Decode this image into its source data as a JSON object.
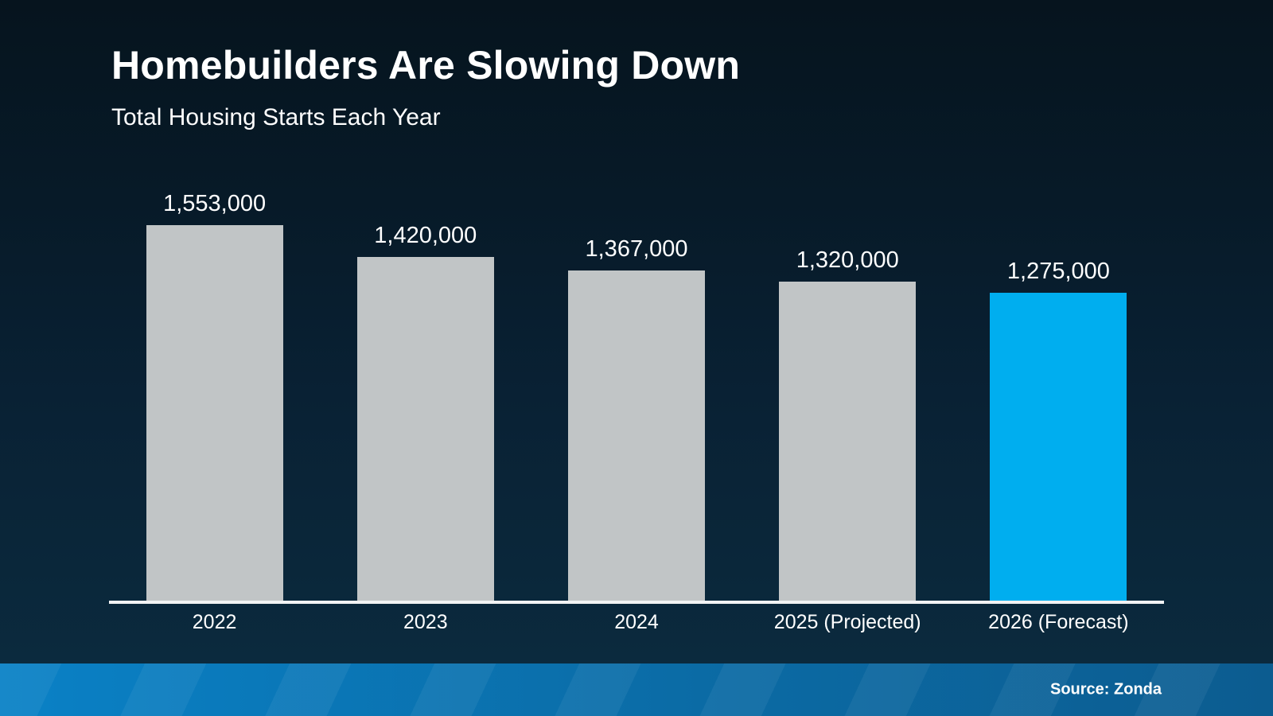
{
  "header": {
    "title": "Homebuilders Are Slowing Down",
    "subtitle": "Total Housing Starts Each Year"
  },
  "footer": {
    "source": "Source: Zonda"
  },
  "colors": {
    "bar_default": "#c1c5c6",
    "bar_highlight": "#00aeef",
    "background_top": "#06141e",
    "background_bottom": "#0b2a3e",
    "footer_left": "#0a81c6",
    "footer_right": "#0c5c90",
    "axis_line": "#f2f3f4",
    "text": "#ffffff"
  },
  "chart_data": {
    "type": "bar",
    "title": "Homebuilders Are Slowing Down",
    "subtitle": "Total Housing Starts Each Year",
    "categories": [
      "2022",
      "2023",
      "2024",
      "2025 (Projected)",
      "2026 (Forecast)"
    ],
    "values": [
      1553000,
      1420000,
      1367000,
      1320000,
      1275000
    ],
    "value_labels": [
      "1,553,000",
      "1,420,000",
      "1,367,000",
      "1,320,000",
      "1,275,000"
    ],
    "bar_colors": [
      "#c1c5c6",
      "#c1c5c6",
      "#c1c5c6",
      "#c1c5c6",
      "#00aeef"
    ],
    "highlight_index": 4,
    "xlabel": "",
    "ylabel": "",
    "ylim": [
      0,
      1553000
    ],
    "grid": false,
    "legend": false,
    "source": "Source: Zonda"
  }
}
